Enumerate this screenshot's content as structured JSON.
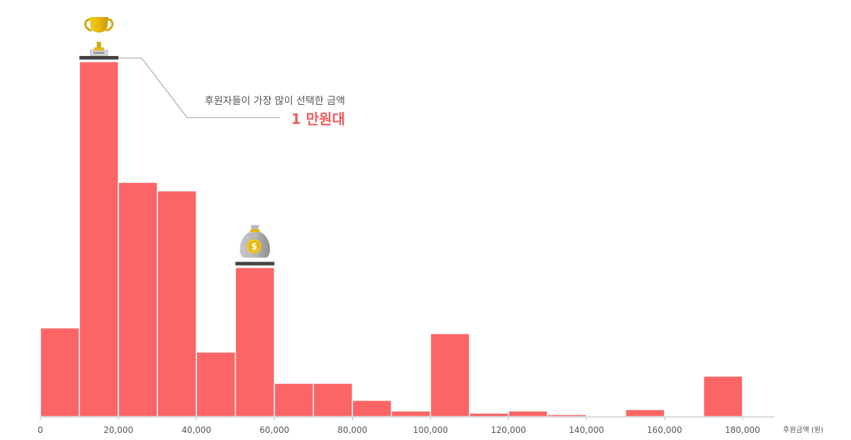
{
  "chart_data": {
    "type": "bar",
    "subtype": "histogram",
    "bin_width": 10000,
    "bins": [
      {
        "x0": 0,
        "x1": 10000,
        "value": 125
      },
      {
        "x0": 10000,
        "x1": 20000,
        "value": 500
      },
      {
        "x0": 20000,
        "x1": 30000,
        "value": 330
      },
      {
        "x0": 30000,
        "x1": 40000,
        "value": 318
      },
      {
        "x0": 40000,
        "x1": 50000,
        "value": 91
      },
      {
        "x0": 50000,
        "x1": 60000,
        "value": 210
      },
      {
        "x0": 60000,
        "x1": 70000,
        "value": 47
      },
      {
        "x0": 70000,
        "x1": 80000,
        "value": 47
      },
      {
        "x0": 80000,
        "x1": 90000,
        "value": 23
      },
      {
        "x0": 90000,
        "x1": 100000,
        "value": 8
      },
      {
        "x0": 100000,
        "x1": 110000,
        "value": 117
      },
      {
        "x0": 110000,
        "x1": 120000,
        "value": 5
      },
      {
        "x0": 120000,
        "x1": 130000,
        "value": 8
      },
      {
        "x0": 130000,
        "x1": 140000,
        "value": 3
      },
      {
        "x0": 140000,
        "x1": 150000,
        "value": 0
      },
      {
        "x0": 150000,
        "x1": 160000,
        "value": 10
      },
      {
        "x0": 160000,
        "x1": 170000,
        "value": 0
      },
      {
        "x0": 170000,
        "x1": 180000,
        "value": 57
      }
    ],
    "xlim": [
      0,
      198000
    ],
    "ylim": [
      0,
      500
    ],
    "x_ticks": [
      0,
      20000,
      40000,
      60000,
      80000,
      100000,
      120000,
      140000,
      160000,
      180000
    ],
    "x_tick_labels": [
      "0",
      "20,000",
      "40,000",
      "60,000",
      "80,000",
      "100,000",
      "120,000",
      "140,000",
      "160,000",
      "180,000"
    ],
    "xlabel": "후원금액 (원)",
    "ylabel": "",
    "title": "",
    "grid": false,
    "legend": "none",
    "bar_color": "#fc6565",
    "bar_stroke_color": "#ffffff",
    "axis_color": "#bbbbbb",
    "annotations": [
      {
        "text": "후원자들이 가장 많이 선택한 금액",
        "value_text": "1 만원대",
        "value_color": "#f15b5b",
        "target_bin": 1,
        "icon": "trophy-icon",
        "line_color": "#999999"
      },
      {
        "target_bin": 5,
        "icon": "money-bag-icon"
      }
    ],
    "marker_color": "#444444"
  }
}
